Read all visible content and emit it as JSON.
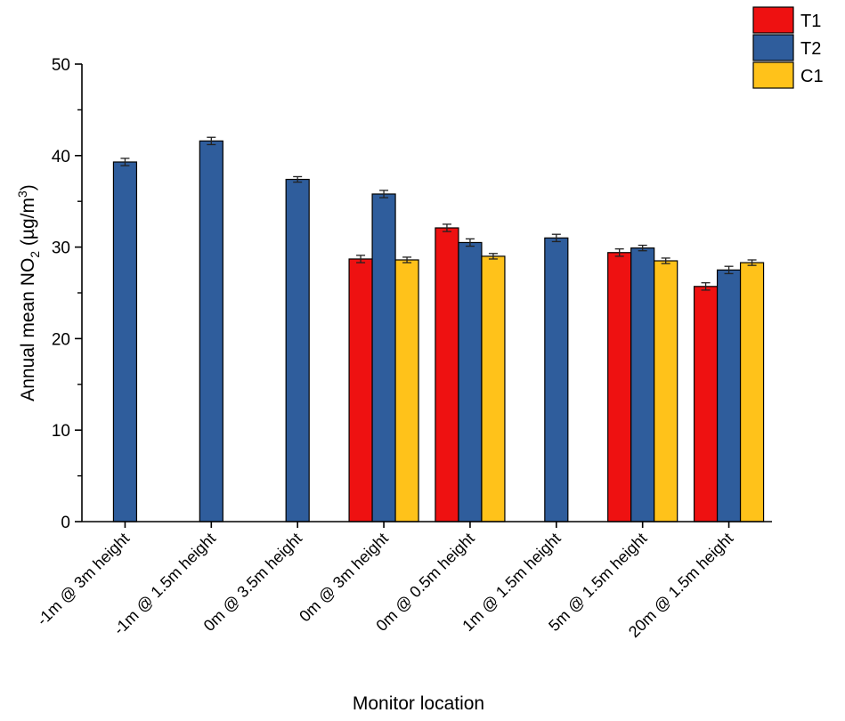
{
  "chart_data": {
    "type": "bar",
    "title": "",
    "xlabel": "Monitor location",
    "ylabel": {
      "prefix": "Annual mean NO",
      "sub": "2",
      "middle": " (µg/m",
      "sup": "3",
      "suffix": ")"
    },
    "ylim": [
      0,
      50
    ],
    "yticks": [
      0,
      10,
      20,
      30,
      40,
      50
    ],
    "grid": false,
    "legend": "top-right",
    "categories": [
      "-1m @ 3m height",
      "-1m @ 1.5m height",
      "0m @ 3.5m height",
      "0m @ 3m height",
      "0m @ 0.5m height",
      "1m @ 1.5m height",
      "5m @ 1.5m height",
      "20m @ 1.5m height"
    ],
    "series": [
      {
        "name": "T1",
        "color": "#ee1111",
        "values": [
          null,
          null,
          null,
          28.7,
          32.1,
          null,
          29.4,
          25.7
        ],
        "errors": [
          null,
          null,
          null,
          0.4,
          0.4,
          null,
          0.4,
          0.4
        ]
      },
      {
        "name": "T2",
        "color": "#2f5d9c",
        "values": [
          39.3,
          41.6,
          37.4,
          35.8,
          30.5,
          31.0,
          29.9,
          27.5
        ],
        "errors": [
          0.4,
          0.4,
          0.3,
          0.4,
          0.4,
          0.4,
          0.3,
          0.4
        ]
      },
      {
        "name": "C1",
        "color": "#ffc21a",
        "values": [
          null,
          null,
          null,
          28.6,
          29.0,
          null,
          28.5,
          28.3
        ],
        "errors": [
          null,
          null,
          null,
          0.3,
          0.3,
          null,
          0.3,
          0.3
        ]
      }
    ]
  }
}
